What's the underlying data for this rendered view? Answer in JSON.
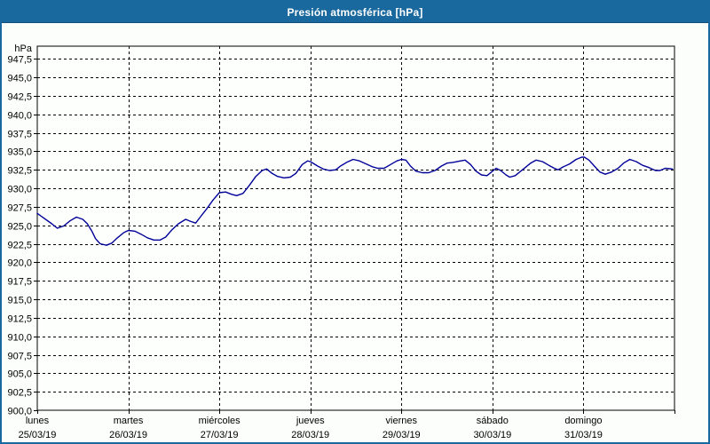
{
  "window": {
    "title": "Presión atmosférica [hPa]"
  },
  "colors": {
    "titlebar_bg": "#1a699e",
    "window_border": "#1a699e",
    "page_bg": "#fbfefb",
    "plot_bg": "#fdfffd",
    "grid": "#000000",
    "axis": "#000000",
    "label_text": "#000000",
    "line": "#000099"
  },
  "chart_data": {
    "type": "line",
    "title": "Presión atmosférica [hPa]",
    "ylabel": "hPa",
    "ylim": [
      900,
      949.2
    ],
    "ytick_interval": 2.5,
    "ytick_labels": [
      "947,5",
      "945,0",
      "942,5",
      "940,0",
      "937,5",
      "935,0",
      "932,5",
      "930,0",
      "927,5",
      "925,0",
      "922,5",
      "920,0",
      "917,5",
      "915,0",
      "912,5",
      "910,0",
      "907,5",
      "905,0",
      "902,5",
      "900,0"
    ],
    "ytick_values": [
      947.5,
      945.0,
      942.5,
      940.0,
      937.5,
      935.0,
      932.5,
      930.0,
      927.5,
      925.0,
      922.5,
      920.0,
      917.5,
      915.0,
      912.5,
      910.0,
      907.5,
      905.0,
      902.5,
      900.0
    ],
    "grid": "dashed",
    "legend_position": "none",
    "x_days": [
      {
        "name": "lunes",
        "date": "25/03/19"
      },
      {
        "name": "martes",
        "date": "26/03/19"
      },
      {
        "name": "miércoles",
        "date": "27/03/19"
      },
      {
        "name": "jueves",
        "date": "28/03/19"
      },
      {
        "name": "viernes",
        "date": "29/03/19"
      },
      {
        "name": "sábado",
        "date": "30/03/19"
      },
      {
        "name": "domingo",
        "date": "31/03/19"
      }
    ],
    "series": [
      {
        "name": "Presión atmosférica",
        "x_unit": "days_since_monday_00h",
        "points": [
          [
            0.0,
            926.6
          ],
          [
            0.08,
            925.9
          ],
          [
            0.16,
            925.2
          ],
          [
            0.22,
            924.6
          ],
          [
            0.29,
            924.9
          ],
          [
            0.36,
            925.6
          ],
          [
            0.43,
            926.1
          ],
          [
            0.5,
            925.8
          ],
          [
            0.55,
            925.2
          ],
          [
            0.6,
            924.2
          ],
          [
            0.64,
            923.2
          ],
          [
            0.69,
            922.5
          ],
          [
            0.76,
            922.3
          ],
          [
            0.82,
            922.6
          ],
          [
            0.88,
            923.3
          ],
          [
            0.95,
            924.0
          ],
          [
            1.0,
            924.3
          ],
          [
            1.07,
            924.2
          ],
          [
            1.14,
            923.8
          ],
          [
            1.21,
            923.3
          ],
          [
            1.28,
            923.0
          ],
          [
            1.35,
            923.0
          ],
          [
            1.41,
            923.4
          ],
          [
            1.48,
            924.4
          ],
          [
            1.55,
            925.2
          ],
          [
            1.63,
            925.8
          ],
          [
            1.69,
            925.5
          ],
          [
            1.74,
            925.3
          ],
          [
            1.79,
            926.1
          ],
          [
            1.86,
            927.2
          ],
          [
            1.93,
            928.4
          ],
          [
            2.0,
            929.4
          ],
          [
            2.07,
            929.5
          ],
          [
            2.13,
            929.2
          ],
          [
            2.19,
            929.0
          ],
          [
            2.26,
            929.3
          ],
          [
            2.33,
            930.4
          ],
          [
            2.4,
            931.6
          ],
          [
            2.47,
            932.4
          ],
          [
            2.52,
            932.6
          ],
          [
            2.58,
            932.0
          ],
          [
            2.64,
            931.6
          ],
          [
            2.71,
            931.4
          ],
          [
            2.78,
            931.5
          ],
          [
            2.84,
            932.0
          ],
          [
            2.91,
            933.2
          ],
          [
            2.97,
            933.7
          ],
          [
            3.0,
            933.6
          ],
          [
            3.08,
            933.0
          ],
          [
            3.14,
            932.6
          ],
          [
            3.21,
            932.4
          ],
          [
            3.28,
            932.5
          ],
          [
            3.33,
            933.0
          ],
          [
            3.4,
            933.5
          ],
          [
            3.47,
            933.9
          ],
          [
            3.54,
            933.7
          ],
          [
            3.61,
            933.3
          ],
          [
            3.68,
            932.9
          ],
          [
            3.74,
            932.7
          ],
          [
            3.81,
            932.7
          ],
          [
            3.88,
            933.2
          ],
          [
            3.95,
            933.7
          ],
          [
            4.0,
            933.9
          ],
          [
            4.05,
            933.8
          ],
          [
            4.1,
            933.0
          ],
          [
            4.16,
            932.3
          ],
          [
            4.23,
            932.1
          ],
          [
            4.3,
            932.1
          ],
          [
            4.37,
            932.4
          ],
          [
            4.44,
            933.0
          ],
          [
            4.5,
            933.4
          ],
          [
            4.57,
            933.5
          ],
          [
            4.65,
            933.7
          ],
          [
            4.7,
            933.8
          ],
          [
            4.76,
            933.2
          ],
          [
            4.82,
            932.3
          ],
          [
            4.88,
            931.8
          ],
          [
            4.94,
            931.7
          ],
          [
            4.99,
            932.2
          ],
          [
            5.04,
            932.7
          ],
          [
            5.09,
            932.4
          ],
          [
            5.15,
            931.8
          ],
          [
            5.19,
            931.5
          ],
          [
            5.25,
            931.7
          ],
          [
            5.3,
            932.2
          ],
          [
            5.36,
            932.8
          ],
          [
            5.42,
            933.4
          ],
          [
            5.48,
            933.8
          ],
          [
            5.55,
            933.6
          ],
          [
            5.62,
            933.1
          ],
          [
            5.68,
            932.7
          ],
          [
            5.72,
            932.5
          ],
          [
            5.78,
            932.9
          ],
          [
            5.85,
            933.3
          ],
          [
            5.92,
            933.9
          ],
          [
            5.98,
            934.2
          ],
          [
            6.01,
            934.2
          ],
          [
            6.06,
            933.8
          ],
          [
            6.12,
            933.0
          ],
          [
            6.18,
            932.2
          ],
          [
            6.24,
            931.9
          ],
          [
            6.31,
            932.2
          ],
          [
            6.38,
            932.7
          ],
          [
            6.44,
            933.4
          ],
          [
            6.51,
            933.9
          ],
          [
            6.58,
            933.6
          ],
          [
            6.65,
            933.1
          ],
          [
            6.72,
            932.8
          ],
          [
            6.79,
            932.4
          ],
          [
            6.84,
            932.4
          ],
          [
            6.9,
            932.7
          ],
          [
            6.98,
            932.6
          ]
        ]
      }
    ]
  }
}
